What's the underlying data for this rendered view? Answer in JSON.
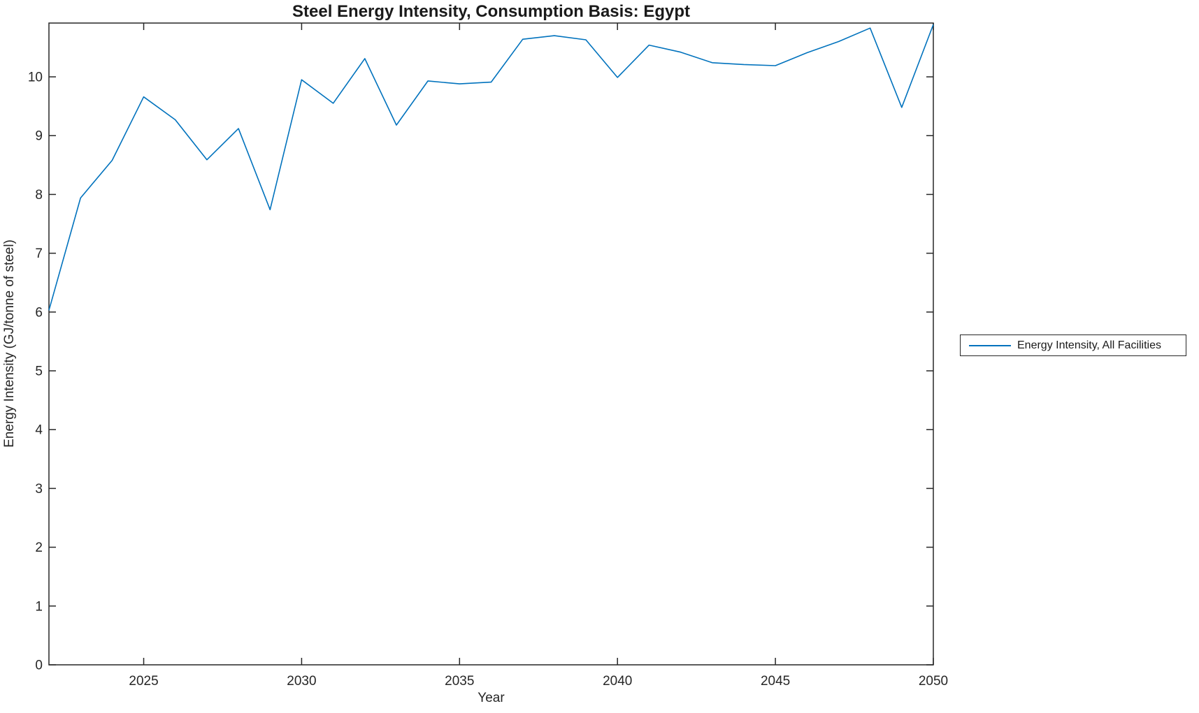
{
  "header": {
    "title": "Steel Energy Intensity, Consumption Basis: Egypt"
  },
  "axes": {
    "xlabel": "Year",
    "ylabel": "Energy Intensity (GJ/tonne of steel)"
  },
  "legend": {
    "label": "Energy Intensity, All Facilities"
  },
  "colors": {
    "series_blue": "#0072BD",
    "axis": "#262626",
    "background": "#ffffff"
  },
  "chart_data": {
    "type": "line",
    "title": "Steel Energy Intensity, Consumption Basis: Egypt",
    "xlabel": "Year",
    "ylabel": "Energy Intensity (GJ/tonne of steel)",
    "xlim": [
      2022,
      2050
    ],
    "ylim": [
      0,
      10.915
    ],
    "xticks": [
      2025,
      2030,
      2035,
      2040,
      2045,
      2050
    ],
    "yticks": [
      0,
      1,
      2,
      3,
      4,
      5,
      6,
      7,
      8,
      9,
      10
    ],
    "grid": false,
    "box": true,
    "tick_direction": "in",
    "legend_position": "outside-right",
    "series": [
      {
        "name": "Energy Intensity, All Facilities",
        "color": "#0072BD",
        "x": [
          2022,
          2023,
          2024,
          2025,
          2026,
          2027,
          2028,
          2029,
          2030,
          2031,
          2032,
          2033,
          2034,
          2035,
          2036,
          2037,
          2038,
          2039,
          2040,
          2041,
          2042,
          2043,
          2044,
          2045,
          2046,
          2047,
          2048,
          2049,
          2050
        ],
        "values": [
          6.03,
          7.94,
          8.58,
          9.66,
          9.27,
          8.59,
          9.12,
          7.74,
          9.95,
          9.55,
          10.31,
          9.18,
          9.93,
          9.88,
          9.91,
          10.64,
          10.7,
          10.63,
          9.99,
          10.54,
          10.42,
          10.24,
          10.21,
          10.19,
          10.41,
          10.6,
          10.83,
          9.48,
          10.89
        ]
      }
    ]
  }
}
